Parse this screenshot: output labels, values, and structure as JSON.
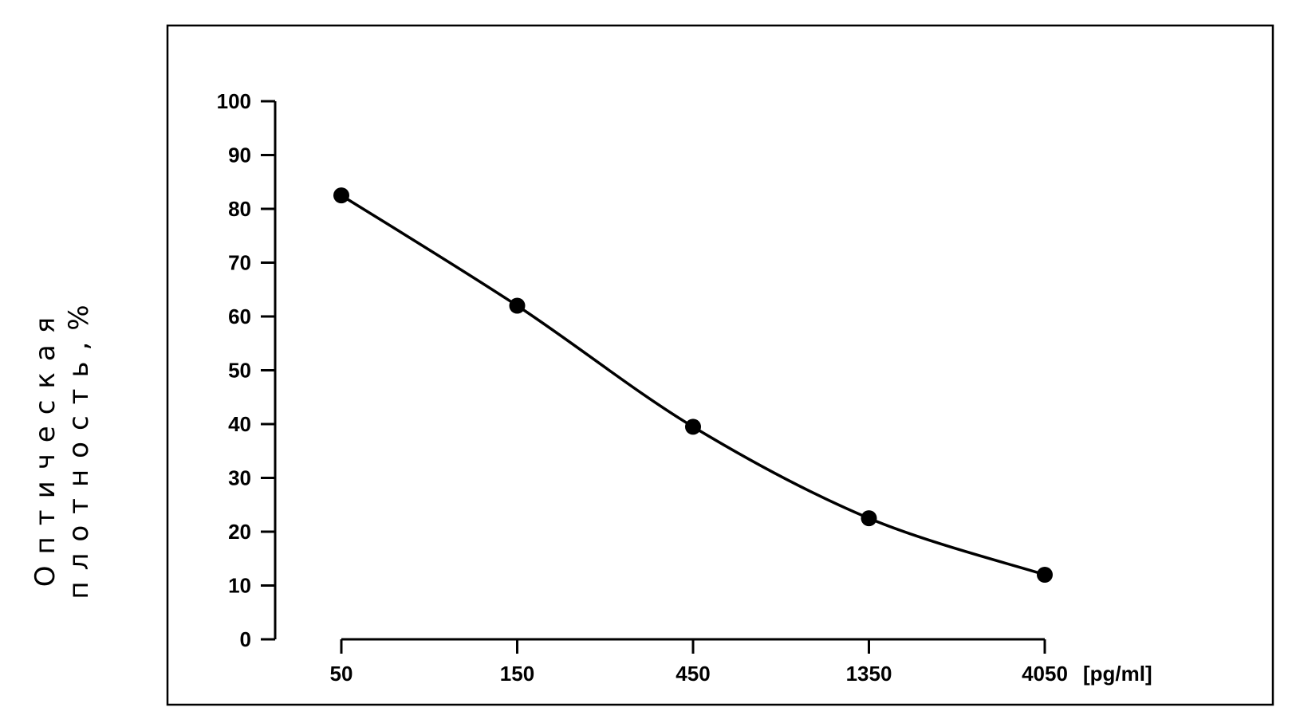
{
  "chart_data": {
    "type": "line",
    "title": "",
    "xlabel": "",
    "x_unit": "[pg/ml]",
    "ylabel_lines": [
      "Оптическая",
      "плотность,%"
    ],
    "x_scale": "log",
    "x": [
      50,
      150,
      450,
      1350,
      4050
    ],
    "x_tick_labels": [
      "50",
      "150",
      "450",
      "1350",
      "4050"
    ],
    "ylim": [
      0,
      100
    ],
    "y_ticks": [
      0,
      10,
      20,
      30,
      40,
      50,
      60,
      70,
      80,
      90,
      100
    ],
    "series": [
      {
        "values": [
          82.5,
          62,
          39.5,
          22.5,
          12
        ]
      }
    ],
    "grid": false,
    "legend": "none"
  },
  "colors": {
    "line": "#000000",
    "background": "#ffffff"
  }
}
